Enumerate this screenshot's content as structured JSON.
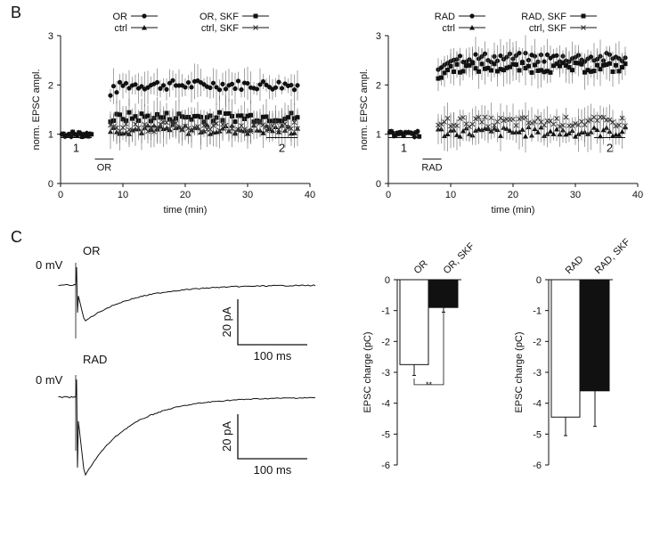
{
  "panel_labels": {
    "B": "B",
    "C": "C"
  },
  "chart_data": [
    {
      "id": "B-left",
      "type": "scatter",
      "ylabel": "norm. EPSC ampl.",
      "xlabel": "time (min)",
      "xlim": [
        0,
        40
      ],
      "ylim": [
        0,
        3
      ],
      "xticks": [
        0,
        10,
        20,
        30,
        40
      ],
      "yticks": [
        0,
        1,
        2,
        3
      ],
      "legend": [
        "OR",
        "ctrl",
        "OR, SKF",
        "ctrl, SKF"
      ],
      "series": [
        {
          "name": "OR",
          "marker": "circle",
          "level": 2.0,
          "start": 8
        },
        {
          "name": "ctrl",
          "marker": "triangle",
          "level": 1.1,
          "start": 8
        },
        {
          "name": "OR, SKF",
          "marker": "square",
          "level": 1.35,
          "start": 8
        },
        {
          "name": "ctrl, SKF",
          "marker": "cross",
          "level": 1.15,
          "start": 8
        }
      ],
      "baseline": {
        "range": [
          0,
          5
        ],
        "level": 1.0
      },
      "annotations": [
        {
          "text": "1",
          "x": [
            0,
            5
          ],
          "y": 0.93
        },
        {
          "text": "2",
          "x": [
            33,
            38
          ],
          "y": 0.93
        },
        {
          "text": "OR",
          "x": [
            5.5,
            8.5
          ],
          "y": 0.35
        }
      ]
    },
    {
      "id": "B-right",
      "type": "scatter",
      "ylabel": "norm. EPSC ampl.",
      "xlabel": "time (min)",
      "xlim": [
        0,
        40
      ],
      "ylim": [
        0,
        3
      ],
      "xticks": [
        0,
        10,
        20,
        30,
        40
      ],
      "yticks": [
        0,
        1,
        2,
        3
      ],
      "legend": [
        "RAD",
        "ctrl",
        "RAD, SKF",
        "ctrl, SKF"
      ],
      "series": [
        {
          "name": "RAD",
          "marker": "circle",
          "level": 2.55,
          "start": 8
        },
        {
          "name": "ctrl",
          "marker": "triangle",
          "level": 1.05,
          "start": 8
        },
        {
          "name": "RAD, SKF",
          "marker": "square",
          "level": 2.35,
          "start": 8
        },
        {
          "name": "ctrl, SKF",
          "marker": "cross",
          "level": 1.25,
          "start": 8
        }
      ],
      "baseline": {
        "range": [
          0,
          5
        ],
        "level": 1.0
      },
      "annotations": [
        {
          "text": "1",
          "x": [
            0,
            5
          ],
          "y": 0.93
        },
        {
          "text": "2",
          "x": [
            33,
            38
          ],
          "y": 0.93
        },
        {
          "text": "RAD",
          "x": [
            5.5,
            8.5
          ],
          "y": 0.35
        }
      ]
    },
    {
      "id": "C-bar-OR",
      "type": "bar",
      "ylabel": "EPSC charge (pC)",
      "ylim": [
        -6,
        0
      ],
      "yticks": [
        0,
        -1,
        -2,
        -3,
        -4,
        -5,
        -6
      ],
      "categories": [
        "OR",
        "OR, SKF"
      ],
      "values": [
        -2.75,
        -0.9
      ],
      "errors": [
        0.35,
        0.15
      ],
      "colors": [
        "#ffffff",
        "#111111"
      ],
      "significance": "**"
    },
    {
      "id": "C-bar-RAD",
      "type": "bar",
      "ylabel": "EPSC charge (pC)",
      "ylim": [
        -6,
        0
      ],
      "yticks": [
        0,
        -1,
        -2,
        -3,
        -4,
        -5,
        -6
      ],
      "categories": [
        "RAD",
        "RAD, SKF"
      ],
      "values": [
        -4.45,
        -3.6
      ],
      "errors": [
        0.6,
        1.15
      ],
      "colors": [
        "#ffffff",
        "#111111"
      ]
    }
  ],
  "traces": [
    {
      "label": "OR",
      "zero_label": "0 mV",
      "scale_y": "20 pA",
      "scale_x": "100 ms",
      "peak": -1,
      "decay": 0.55
    },
    {
      "label": "RAD",
      "zero_label": "0 mV",
      "scale_y": "20 pA",
      "scale_x": "100 ms",
      "peak": -2,
      "decay": 0.35
    }
  ]
}
